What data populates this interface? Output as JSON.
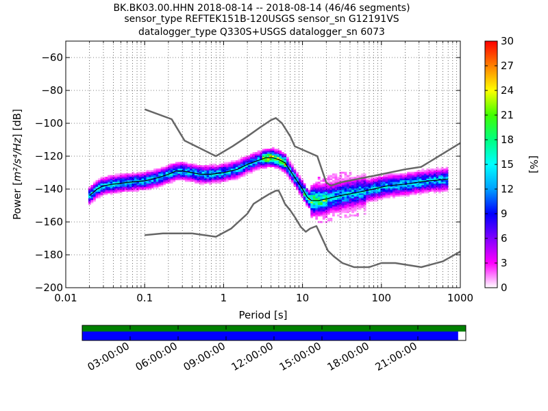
{
  "title_lines": [
    "BK.BK03.00.HHN   2018-08-14 -- 2018-08-14  (46/46 segments)",
    "sensor_type REFTEK151B-120USGS sensor_sn G12191VS",
    "datalogger_type Q330S+USGS datalogger_sn 6073"
  ],
  "chart_data": {
    "type": "heatmap",
    "xlabel": "Period [s]",
    "ylabel_prefix": "Power [",
    "ylabel_math": "m²/s⁴/Hz",
    "ylabel_suffix": "] [dB]",
    "xscale": "log",
    "xlim": [
      0.01,
      1000
    ],
    "ylim": [
      -200,
      -50
    ],
    "xticks": [
      {
        "value": 0.01,
        "label": "0.01"
      },
      {
        "value": 0.1,
        "label": "0.1"
      },
      {
        "value": 1,
        "label": "1"
      },
      {
        "value": 10,
        "label": "10"
      },
      {
        "value": 100,
        "label": "100"
      },
      {
        "value": 1000,
        "label": "1000"
      }
    ],
    "yticks": [
      {
        "value": -60,
        "label": "−60"
      },
      {
        "value": -80,
        "label": "−80"
      },
      {
        "value": -100,
        "label": "−100"
      },
      {
        "value": -120,
        "label": "−120"
      },
      {
        "value": -140,
        "label": "−140"
      },
      {
        "value": -160,
        "label": "−160"
      },
      {
        "value": -180,
        "label": "−180"
      },
      {
        "value": -200,
        "label": "−200"
      }
    ],
    "grid": true,
    "colorbar": {
      "label": "[%]",
      "min": 0,
      "max": 30,
      "ticks": [
        {
          "value": 0,
          "label": "0"
        },
        {
          "value": 3,
          "label": "3"
        },
        {
          "value": 6,
          "label": "6"
        },
        {
          "value": 9,
          "label": "9"
        },
        {
          "value": 12,
          "label": "12"
        },
        {
          "value": 15,
          "label": "15"
        },
        {
          "value": 18,
          "label": "18"
        },
        {
          "value": 21,
          "label": "21"
        },
        {
          "value": 24,
          "label": "24"
        },
        {
          "value": 27,
          "label": "27"
        },
        {
          "value": 30,
          "label": "30"
        }
      ],
      "colors": [
        "#ffffff",
        "#ff00ff",
        "#8000ff",
        "#0000ff",
        "#00a0ff",
        "#00ffff",
        "#00ff80",
        "#40ff00",
        "#ffff00",
        "#ff8000",
        "#ff0000"
      ]
    },
    "series": [
      {
        "role": "noise-model-high",
        "color": "#666666",
        "points": [
          [
            0.1,
            -91.5
          ],
          [
            0.22,
            -97.5
          ],
          [
            0.32,
            -110.5
          ],
          [
            0.8,
            -120
          ],
          [
            1.3,
            -114
          ],
          [
            2.0,
            -108
          ],
          [
            3.0,
            -102
          ],
          [
            4.0,
            -98
          ],
          [
            4.6,
            -96.8
          ],
          [
            5.5,
            -100
          ],
          [
            7.0,
            -108
          ],
          [
            8.0,
            -114
          ],
          [
            15.4,
            -120
          ],
          [
            20.0,
            -136
          ],
          [
            23.0,
            -138
          ],
          [
            30.0,
            -136
          ],
          [
            100,
            -131
          ],
          [
            200,
            -128
          ],
          [
            320,
            -126.5
          ],
          [
            1000,
            -112
          ]
        ]
      },
      {
        "role": "noise-model-low",
        "color": "#666666",
        "points": [
          [
            0.1,
            -168
          ],
          [
            0.17,
            -167
          ],
          [
            0.4,
            -167
          ],
          [
            0.8,
            -169
          ],
          [
            1.25,
            -164
          ],
          [
            2.0,
            -155
          ],
          [
            2.4,
            -149
          ],
          [
            3.0,
            -146
          ],
          [
            3.8,
            -143
          ],
          [
            4.6,
            -141
          ],
          [
            5.0,
            -141
          ],
          [
            5.5,
            -145
          ],
          [
            6.0,
            -149
          ],
          [
            7.0,
            -153
          ],
          [
            8.0,
            -157
          ],
          [
            9.5,
            -163
          ],
          [
            11.0,
            -166
          ],
          [
            12.5,
            -164
          ],
          [
            15.0,
            -162.5
          ],
          [
            17.0,
            -168
          ],
          [
            21.0,
            -177.5
          ],
          [
            25.0,
            -181
          ],
          [
            32.0,
            -185
          ],
          [
            45.0,
            -187.5
          ],
          [
            70.0,
            -187.5
          ],
          [
            100,
            -185
          ],
          [
            150,
            -185
          ],
          [
            320,
            -187.5
          ],
          [
            600,
            -184
          ],
          [
            1000,
            -178
          ]
        ]
      },
      {
        "role": "mode",
        "color": "#000000",
        "points": [
          [
            0.02,
            -144
          ],
          [
            0.025,
            -140
          ],
          [
            0.03,
            -138
          ],
          [
            0.04,
            -137
          ],
          [
            0.06,
            -136
          ],
          [
            0.1,
            -135
          ],
          [
            0.15,
            -133
          ],
          [
            0.2,
            -131
          ],
          [
            0.25,
            -129
          ],
          [
            0.3,
            -129
          ],
          [
            0.4,
            -130
          ],
          [
            0.5,
            -131
          ],
          [
            0.7,
            -131
          ],
          [
            1.0,
            -130
          ],
          [
            1.5,
            -128
          ],
          [
            2.0,
            -125
          ],
          [
            2.6,
            -123
          ],
          [
            3.4,
            -121
          ],
          [
            4.2,
            -121
          ],
          [
            5.0,
            -122
          ],
          [
            6.0,
            -124
          ],
          [
            6.8,
            -128
          ],
          [
            8.0,
            -133
          ],
          [
            10.0,
            -140
          ],
          [
            11.5,
            -145
          ],
          [
            13.0,
            -147
          ],
          [
            16.0,
            -147
          ],
          [
            20.0,
            -146
          ],
          [
            30.0,
            -144
          ],
          [
            50.0,
            -142
          ],
          [
            80.0,
            -140
          ],
          [
            120,
            -138
          ],
          [
            200,
            -137
          ],
          [
            400,
            -135
          ],
          [
            700,
            -134
          ]
        ]
      }
    ]
  },
  "timeline": {
    "labels": [
      "03:00:00",
      "06:00:00",
      "09:00:00",
      "12:00:00",
      "15:00:00",
      "18:00:00",
      "21:00:00"
    ],
    "start": "2018-08-14T00:00:00",
    "end": "2018-08-15T00:00:00",
    "green_fraction": 1.0,
    "blue_fraction": 0.98,
    "green_color": "#008000",
    "blue_color": "#0000ff"
  }
}
